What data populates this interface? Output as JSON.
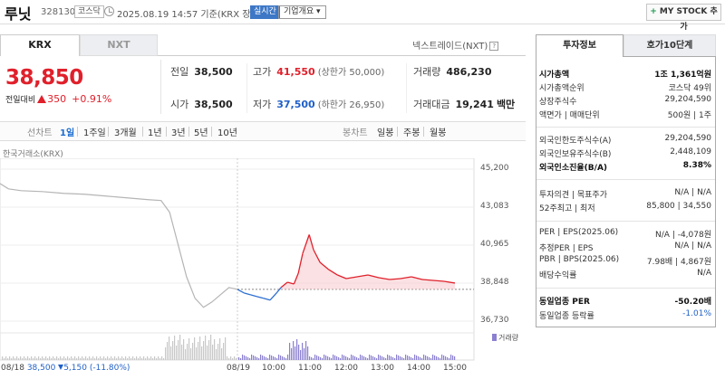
{
  "header": {
    "name": "루닛",
    "code": "328130",
    "market": "코스닥",
    "timestamp": "2025.08.19 14:57  기준(KRX 장중)",
    "realtime": "실시간",
    "company_btn": "기업개요 ▾",
    "mystock_btn": "MY STOCK 추가"
  },
  "tabs": {
    "krx": "KRX",
    "nxt": "NXT",
    "next_trade": "넥스트레이드(NXT)"
  },
  "price": {
    "current": "38,850",
    "change_label": "전일대비",
    "change": "350",
    "change_pct": "+0.91%"
  },
  "quote": {
    "prev_label": "전일",
    "prev": "38,500",
    "high_label": "고가",
    "high": "41,550",
    "upper_limit": "(상한가 50,000)",
    "volume_label": "거래량",
    "volume": "486,230",
    "open_label": "시가",
    "open": "38,500",
    "low_label": "저가",
    "low": "37,500",
    "lower_limit": "(하한가 26,950)",
    "amount_label": "거래대금",
    "amount": "19,241",
    "amount_unit": "백만"
  },
  "periods": {
    "line": "선차트",
    "items": [
      "1일",
      "1주일",
      "3개월",
      "1년",
      "3년",
      "5년",
      "10년"
    ],
    "candle": "봉차트",
    "candle_items": [
      "일봉",
      "주봉",
      "월봉"
    ]
  },
  "chart_source": "한국거래소(KRX)",
  "chart_data": {
    "type": "line",
    "ylim": [
      36730,
      45200
    ],
    "y_ticks": [
      "45,200",
      "43,083",
      "40,965",
      "38,848",
      "36,730"
    ],
    "x_ticks": [
      "08/19",
      "10:00",
      "11:00",
      "12:00",
      "13:00",
      "14:00",
      "15:00"
    ],
    "prev_close": 38500,
    "prev_day": [
      [
        0,
        44400
      ],
      [
        0.02,
        44100
      ],
      [
        0.05,
        44000
      ],
      [
        0.1,
        43950
      ],
      [
        0.15,
        43850
      ],
      [
        0.2,
        43800
      ],
      [
        0.25,
        43700
      ],
      [
        0.3,
        43600
      ],
      [
        0.35,
        43500
      ],
      [
        0.38,
        43450
      ],
      [
        0.4,
        42800
      ],
      [
        0.42,
        41000
      ],
      [
        0.44,
        39200
      ],
      [
        0.46,
        38000
      ],
      [
        0.48,
        37500
      ],
      [
        0.5,
        37800
      ],
      [
        0.52,
        38200
      ],
      [
        0.54,
        38600
      ],
      [
        0.56,
        38500
      ]
    ],
    "today": [
      [
        0,
        38500
      ],
      [
        0.03,
        38300
      ],
      [
        0.06,
        38200
      ],
      [
        0.09,
        38100
      ],
      [
        0.12,
        38000
      ],
      [
        0.15,
        37900
      ],
      [
        0.18,
        38300
      ],
      [
        0.2,
        38600
      ],
      [
        0.23,
        38900
      ],
      [
        0.26,
        38800
      ],
      [
        0.28,
        39400
      ],
      [
        0.3,
        40500
      ],
      [
        0.33,
        41550
      ],
      [
        0.35,
        40700
      ],
      [
        0.38,
        40000
      ],
      [
        0.42,
        39600
      ],
      [
        0.46,
        39300
      ],
      [
        0.5,
        39100
      ],
      [
        0.55,
        39200
      ],
      [
        0.6,
        39300
      ],
      [
        0.65,
        39150
      ],
      [
        0.7,
        39050
      ],
      [
        0.75,
        39100
      ],
      [
        0.8,
        39200
      ],
      [
        0.85,
        39050
      ],
      [
        0.9,
        39000
      ],
      [
        0.95,
        38950
      ],
      [
        1,
        38850
      ]
    ],
    "volume_legend": "거래량"
  },
  "x_prev_summary": {
    "date": "08/18",
    "price": "38,500",
    "change": "5,150",
    "pct": "(-11.80%)"
  },
  "info": {
    "tab_invest": "투자정보",
    "tab_ask": "호가10단계",
    "rows": [
      {
        "k": "시가총액",
        "v": "1조 1,361억원"
      },
      {
        "k": "시가총액순위",
        "v": "코스닥 49위"
      },
      {
        "k": "상장주식수",
        "v": "29,204,590"
      },
      {
        "k": "액면가 | 매매단위",
        "v": "500원 | 1주"
      },
      {
        "k": "외국인한도주식수(A)",
        "v": "29,204,590"
      },
      {
        "k": "외국인보유주식수(B)",
        "v": "2,448,109"
      },
      {
        "k": "외국인소진율(B/A)",
        "v": "8.38%"
      },
      {
        "k": "투자의견 | 목표주가",
        "v": "N/A | N/A"
      },
      {
        "k": "52주최고 | 최저",
        "v": "85,800 | 34,550"
      },
      {
        "k": "PER | EPS(2025.06)",
        "v": "N/A | -4,078원"
      },
      {
        "k": "추정PER | EPS",
        "v": "N/A | N/A"
      },
      {
        "k": "PBR | BPS(2025.06)",
        "v": "7.98배 | 4,867원"
      },
      {
        "k": "배당수익률",
        "v": "N/A"
      },
      {
        "k": "동일업종 PER",
        "v": "-50.20배"
      },
      {
        "k": "동일업종 등락률",
        "v": "-1.01%"
      }
    ]
  }
}
